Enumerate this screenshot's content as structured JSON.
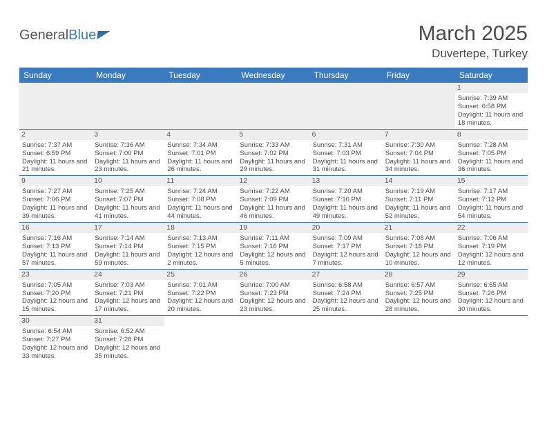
{
  "logo": {
    "general": "General",
    "blue": "Blue"
  },
  "title": "March 2025",
  "location": "Duvertepe, Turkey",
  "colors": {
    "header_bg": "#3a7bbf",
    "header_text": "#ffffff",
    "border": "#3a7bbf",
    "daynum_bg": "#eeeeee",
    "text": "#4a4a4a"
  },
  "days_of_week": [
    "Sunday",
    "Monday",
    "Tuesday",
    "Wednesday",
    "Thursday",
    "Friday",
    "Saturday"
  ],
  "weeks": [
    [
      {
        "n": "",
        "t": ""
      },
      {
        "n": "",
        "t": ""
      },
      {
        "n": "",
        "t": ""
      },
      {
        "n": "",
        "t": ""
      },
      {
        "n": "",
        "t": ""
      },
      {
        "n": "",
        "t": ""
      },
      {
        "n": "1",
        "t": "Sunrise: 7:39 AM\nSunset: 6:58 PM\nDaylight: 11 hours and 18 minutes."
      }
    ],
    [
      {
        "n": "2",
        "t": "Sunrise: 7:37 AM\nSunset: 6:59 PM\nDaylight: 11 hours and 21 minutes."
      },
      {
        "n": "3",
        "t": "Sunrise: 7:36 AM\nSunset: 7:00 PM\nDaylight: 11 hours and 23 minutes."
      },
      {
        "n": "4",
        "t": "Sunrise: 7:34 AM\nSunset: 7:01 PM\nDaylight: 11 hours and 26 minutes."
      },
      {
        "n": "5",
        "t": "Sunrise: 7:33 AM\nSunset: 7:02 PM\nDaylight: 11 hours and 29 minutes."
      },
      {
        "n": "6",
        "t": "Sunrise: 7:31 AM\nSunset: 7:03 PM\nDaylight: 11 hours and 31 minutes."
      },
      {
        "n": "7",
        "t": "Sunrise: 7:30 AM\nSunset: 7:04 PM\nDaylight: 11 hours and 34 minutes."
      },
      {
        "n": "8",
        "t": "Sunrise: 7:28 AM\nSunset: 7:05 PM\nDaylight: 11 hours and 36 minutes."
      }
    ],
    [
      {
        "n": "9",
        "t": "Sunrise: 7:27 AM\nSunset: 7:06 PM\nDaylight: 11 hours and 39 minutes."
      },
      {
        "n": "10",
        "t": "Sunrise: 7:25 AM\nSunset: 7:07 PM\nDaylight: 11 hours and 41 minutes."
      },
      {
        "n": "11",
        "t": "Sunrise: 7:24 AM\nSunset: 7:08 PM\nDaylight: 11 hours and 44 minutes."
      },
      {
        "n": "12",
        "t": "Sunrise: 7:22 AM\nSunset: 7:09 PM\nDaylight: 11 hours and 46 minutes."
      },
      {
        "n": "13",
        "t": "Sunrise: 7:20 AM\nSunset: 7:10 PM\nDaylight: 11 hours and 49 minutes."
      },
      {
        "n": "14",
        "t": "Sunrise: 7:19 AM\nSunset: 7:11 PM\nDaylight: 11 hours and 52 minutes."
      },
      {
        "n": "15",
        "t": "Sunrise: 7:17 AM\nSunset: 7:12 PM\nDaylight: 11 hours and 54 minutes."
      }
    ],
    [
      {
        "n": "16",
        "t": "Sunrise: 7:16 AM\nSunset: 7:13 PM\nDaylight: 11 hours and 57 minutes."
      },
      {
        "n": "17",
        "t": "Sunrise: 7:14 AM\nSunset: 7:14 PM\nDaylight: 11 hours and 59 minutes."
      },
      {
        "n": "18",
        "t": "Sunrise: 7:13 AM\nSunset: 7:15 PM\nDaylight: 12 hours and 2 minutes."
      },
      {
        "n": "19",
        "t": "Sunrise: 7:11 AM\nSunset: 7:16 PM\nDaylight: 12 hours and 5 minutes."
      },
      {
        "n": "20",
        "t": "Sunrise: 7:09 AM\nSunset: 7:17 PM\nDaylight: 12 hours and 7 minutes."
      },
      {
        "n": "21",
        "t": "Sunrise: 7:08 AM\nSunset: 7:18 PM\nDaylight: 12 hours and 10 minutes."
      },
      {
        "n": "22",
        "t": "Sunrise: 7:06 AM\nSunset: 7:19 PM\nDaylight: 12 hours and 12 minutes."
      }
    ],
    [
      {
        "n": "23",
        "t": "Sunrise: 7:05 AM\nSunset: 7:20 PM\nDaylight: 12 hours and 15 minutes."
      },
      {
        "n": "24",
        "t": "Sunrise: 7:03 AM\nSunset: 7:21 PM\nDaylight: 12 hours and 17 minutes."
      },
      {
        "n": "25",
        "t": "Sunrise: 7:01 AM\nSunset: 7:22 PM\nDaylight: 12 hours and 20 minutes."
      },
      {
        "n": "26",
        "t": "Sunrise: 7:00 AM\nSunset: 7:23 PM\nDaylight: 12 hours and 23 minutes."
      },
      {
        "n": "27",
        "t": "Sunrise: 6:58 AM\nSunset: 7:24 PM\nDaylight: 12 hours and 25 minutes."
      },
      {
        "n": "28",
        "t": "Sunrise: 6:57 AM\nSunset: 7:25 PM\nDaylight: 12 hours and 28 minutes."
      },
      {
        "n": "29",
        "t": "Sunrise: 6:55 AM\nSunset: 7:26 PM\nDaylight: 12 hours and 30 minutes."
      }
    ],
    [
      {
        "n": "30",
        "t": "Sunrise: 6:54 AM\nSunset: 7:27 PM\nDaylight: 12 hours and 33 minutes."
      },
      {
        "n": "31",
        "t": "Sunrise: 6:52 AM\nSunset: 7:28 PM\nDaylight: 12 hours and 35 minutes."
      },
      {
        "n": "",
        "t": ""
      },
      {
        "n": "",
        "t": ""
      },
      {
        "n": "",
        "t": ""
      },
      {
        "n": "",
        "t": ""
      },
      {
        "n": "",
        "t": ""
      }
    ]
  ]
}
